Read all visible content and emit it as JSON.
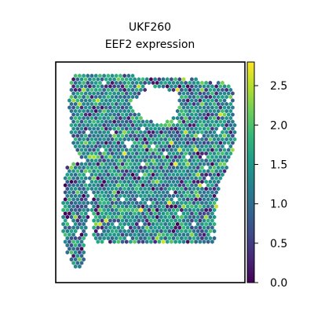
{
  "chart_data": {
    "type": "scatter",
    "title": "UKF260",
    "subtitle": "EEF2 expression",
    "xlabel": "",
    "ylabel": "",
    "colormap": "viridis",
    "colorbar": {
      "min": 0.0,
      "max": 2.8,
      "ticks": [
        0.0,
        0.5,
        1.0,
        1.5,
        2.0,
        2.5
      ],
      "tick_labels": [
        "0.0",
        "0.5",
        "1.0",
        "1.5",
        "2.0",
        "2.5"
      ]
    },
    "grid": false,
    "legend": "colorbar-right",
    "marker": "hexagon",
    "typical_value": 1.3
  },
  "colors": {
    "viridis": [
      "#440154",
      "#482878",
      "#3e4a89",
      "#31688e",
      "#26828e",
      "#1f9e89",
      "#35b779",
      "#6ece58",
      "#b5de2b",
      "#fde725"
    ]
  }
}
